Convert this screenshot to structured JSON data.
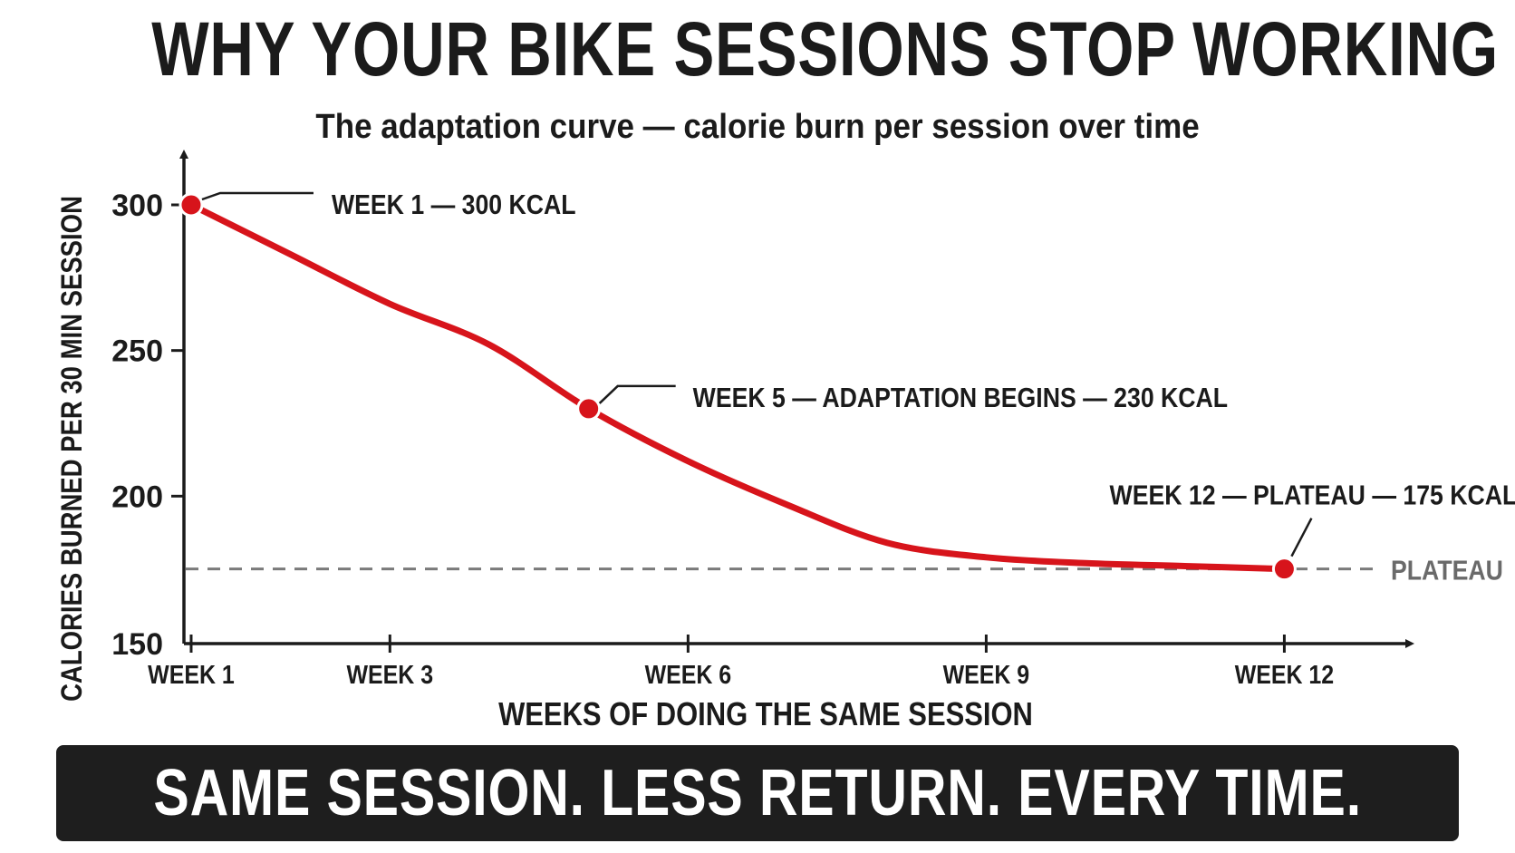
{
  "title": "WHY YOUR BIKE SESSIONS STOP WORKING",
  "subtitle": "The adaptation curve — calorie burn per session over time",
  "banner": "SAME SESSION. LESS RETURN. EVERY TIME.",
  "colors": {
    "curve": "#d7141b",
    "text": "#1b1b1b",
    "plateau_line": "#7a7a7a",
    "banner_bg": "#1e1e1e",
    "banner_text": "#ffffff"
  },
  "chart_data": {
    "type": "line",
    "title": "WHY YOUR BIKE SESSIONS STOP WORKING",
    "subtitle": "The adaptation curve — calorie burn per session over time",
    "xlabel": "WEEKS OF DOING THE SAME SESSION",
    "ylabel": "CALORIES BURNED PER 30 MIN SESSION",
    "xlim": [
      0.9,
      13.3
    ],
    "ylim": [
      150,
      300
    ],
    "x_ticks": [
      {
        "value": 1,
        "label": "WEEK 1"
      },
      {
        "value": 3,
        "label": "WEEK 3"
      },
      {
        "value": 6,
        "label": "WEEK 6"
      },
      {
        "value": 9,
        "label": "WEEK 9"
      },
      {
        "value": 12,
        "label": "WEEK 12"
      }
    ],
    "y_ticks": [
      300,
      250,
      200,
      150
    ],
    "grid": false,
    "series": [
      {
        "x": [
          1,
          2,
          3,
          4,
          5,
          6,
          7,
          8,
          9,
          10,
          11,
          12
        ],
        "values": [
          300,
          283,
          266,
          252,
          230,
          212,
          197,
          184,
          179,
          177,
          176,
          175
        ],
        "color": "#d7141b"
      }
    ],
    "markers": [
      {
        "x": 1,
        "y": 300
      },
      {
        "x": 5,
        "y": 230
      },
      {
        "x": 12,
        "y": 175
      }
    ],
    "annotations": [
      {
        "text": "WEEK 1 — 300 KCAL",
        "x": 1,
        "y": 300
      },
      {
        "text": "WEEK 5 — ADAPTATION BEGINS — 230 KCAL",
        "x": 5,
        "y": 230
      },
      {
        "text": "WEEK 12 — PLATEAU — 175 KCAL",
        "x": 12,
        "y": 175
      }
    ],
    "reference_line": {
      "y": 175,
      "label": "PLATEAU",
      "style": "dashed"
    }
  }
}
